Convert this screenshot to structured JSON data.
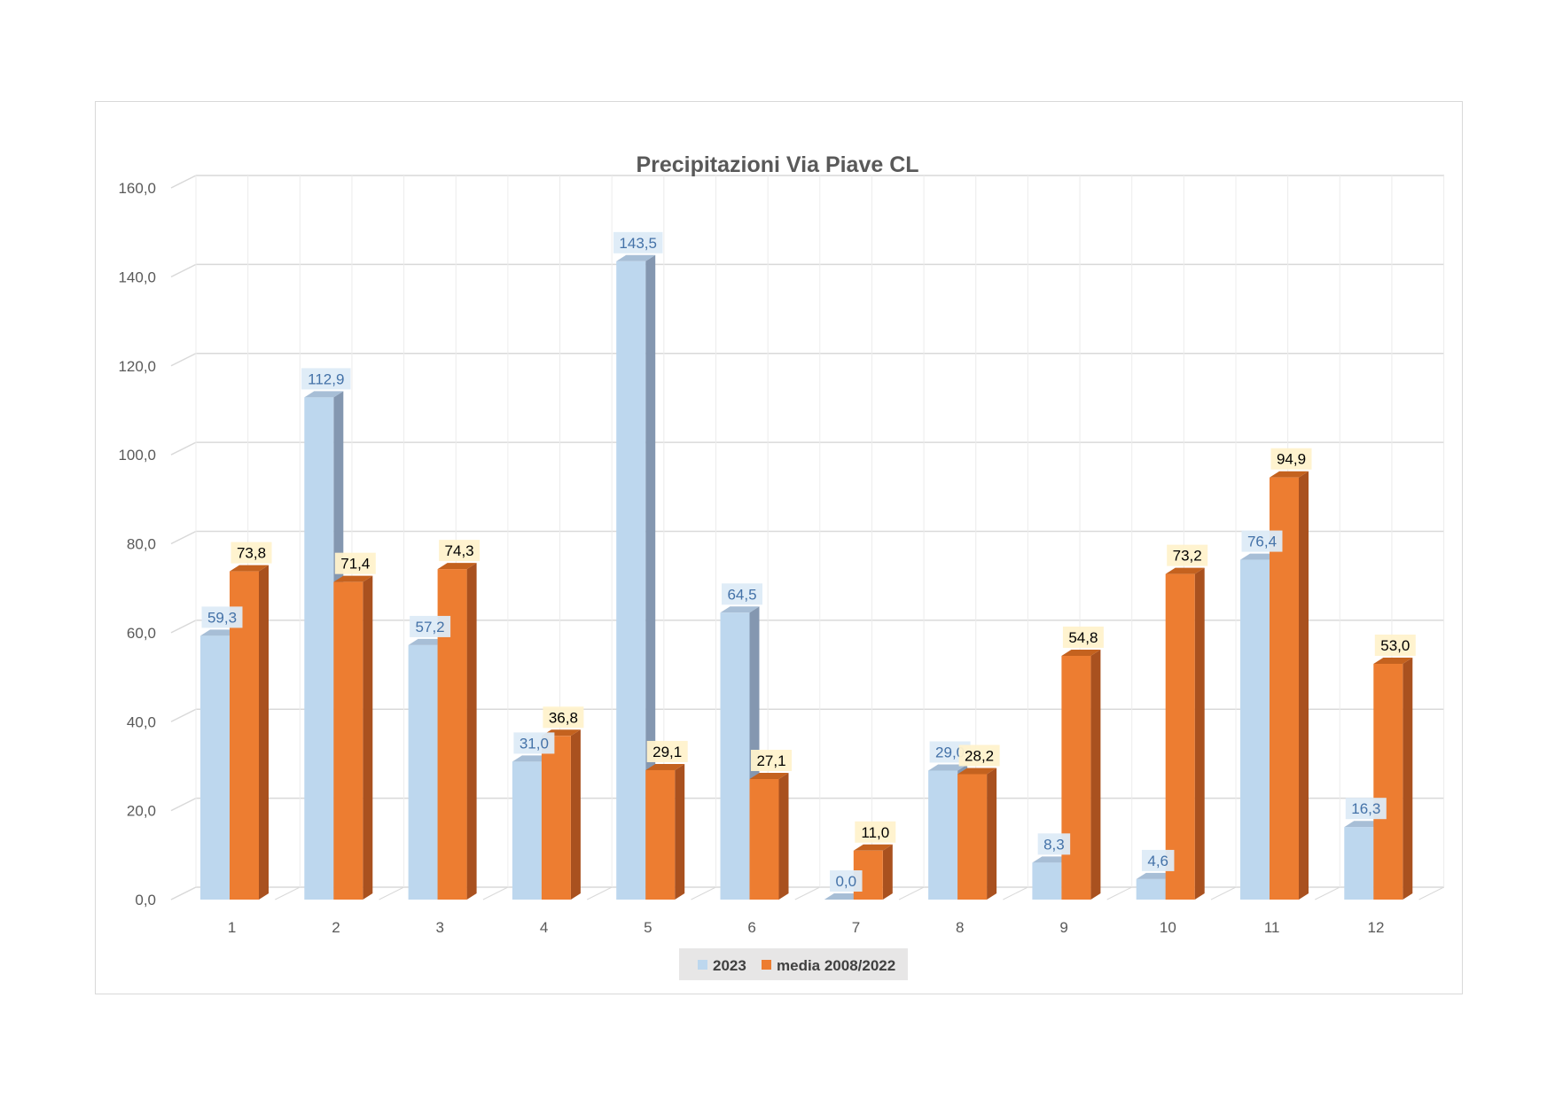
{
  "chart_data": {
    "type": "bar",
    "title": "Precipitazioni Via Piave CL",
    "xlabel": "",
    "ylabel": "",
    "categories": [
      "1",
      "2",
      "3",
      "4",
      "5",
      "6",
      "7",
      "8",
      "9",
      "10",
      "11",
      "12"
    ],
    "y_ticks": [
      "0,0",
      "20,0",
      "40,0",
      "60,0",
      "80,0",
      "100,0",
      "120,0",
      "140,0",
      "160,0"
    ],
    "ylim": [
      0,
      160
    ],
    "grid": true,
    "legend_position": "bottom",
    "style": "3d-clustered-column",
    "series": [
      {
        "name": "2023",
        "color": "#bdd7ee",
        "values": [
          59.3,
          112.9,
          57.2,
          31.0,
          143.5,
          64.5,
          0.0,
          29.0,
          8.3,
          4.6,
          76.4,
          16.3
        ],
        "labels": [
          "59,3",
          "112,9",
          "57,2",
          "31,0",
          "143,5",
          "64,5",
          "0,0",
          "29,0",
          "8,3",
          "4,6",
          "76,4",
          "16,3"
        ]
      },
      {
        "name": "media 2008/2022",
        "color": "#ed7d31",
        "values": [
          73.8,
          71.4,
          74.3,
          36.8,
          29.1,
          27.1,
          11.0,
          28.2,
          54.8,
          73.2,
          94.9,
          53.0
        ],
        "labels": [
          "73,8",
          "71,4",
          "74,3",
          "36,8",
          "29,1",
          "27,1",
          "11,0",
          "28,2",
          "54,8",
          "73,2",
          "94,9",
          "53,0"
        ]
      }
    ]
  }
}
